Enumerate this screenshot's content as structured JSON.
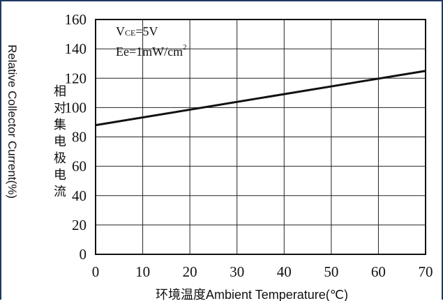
{
  "chart_data": {
    "type": "line",
    "x": [
      0,
      70
    ],
    "series": [
      {
        "values": [
          88,
          125
        ]
      }
    ],
    "xlim": [
      0,
      70
    ],
    "ylim": [
      0,
      160
    ],
    "x_ticks": [
      "0",
      "10",
      "20",
      "30",
      "40",
      "50",
      "60",
      "70"
    ],
    "y_ticks": [
      "0",
      "20",
      "40",
      "60",
      "80",
      "100",
      "120",
      "140",
      "160"
    ],
    "xlabel_cn": "环境温度",
    "xlabel_en": "Ambient Temperature(℃)",
    "ylabel_en": "Relative Collector Current(%)",
    "ylabel_cn": [
      "相",
      "对",
      "集",
      "电",
      "极",
      "电",
      "流"
    ],
    "annotations": {
      "vce_v": "V",
      "vce_sub": "CE",
      "vce_val": "=5V",
      "ee_base": "Ee=1mW/cm",
      "ee_sup": "2"
    },
    "grid": true,
    "colors": {
      "line": "#111111",
      "grid": "#222222",
      "frame": "#1f3864"
    }
  }
}
